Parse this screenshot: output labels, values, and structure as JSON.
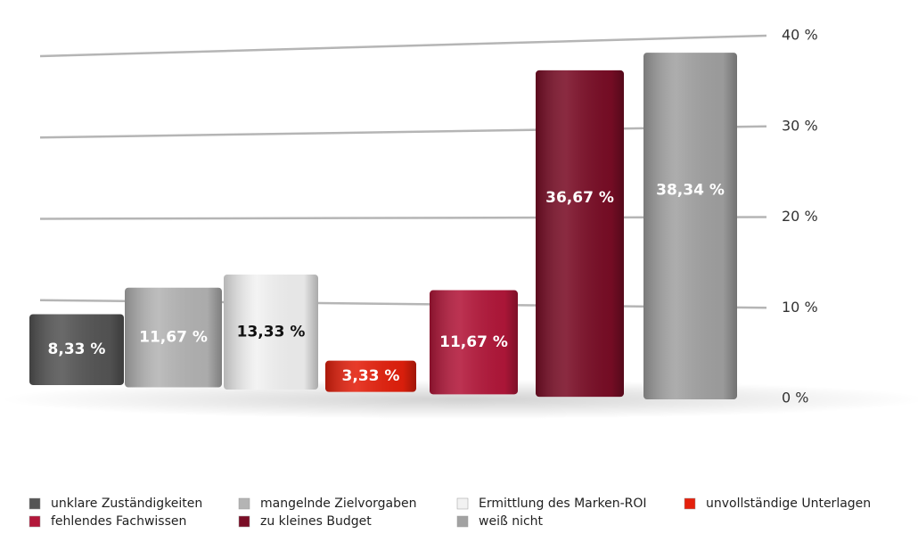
{
  "chart_data": {
    "type": "bar",
    "categories": [
      "unklare Zuständigkeiten",
      "mangelnde  Zielvorgaben",
      "Ermittlung des Marken-ROI",
      "unvollständige Unterlagen",
      "fehlendes Fachwissen",
      "zu kleines Budget",
      "weiß nicht"
    ],
    "values": [
      8.33,
      11.67,
      13.33,
      3.33,
      11.67,
      36.67,
      38.34
    ],
    "value_labels": [
      "8,33 %",
      "11,67 %",
      "13,33 %",
      "3,33 %",
      "11,67 %",
      "36,67 %",
      "38,34 %"
    ],
    "colors": [
      "#555555",
      "#b4b4b4",
      "#f2f2f2",
      "#e4200c",
      "#b3173a",
      "#7a0d26",
      "#a2a2a2"
    ],
    "ylim": [
      0,
      40
    ],
    "yticks": [
      {
        "value": 0,
        "label": "0 %"
      },
      {
        "value": 10,
        "label": "10 %"
      },
      {
        "value": 20,
        "label": "20 %"
      },
      {
        "value": 30,
        "label": "30 %"
      },
      {
        "value": 40,
        "label": "40 %"
      }
    ],
    "grid": true
  }
}
